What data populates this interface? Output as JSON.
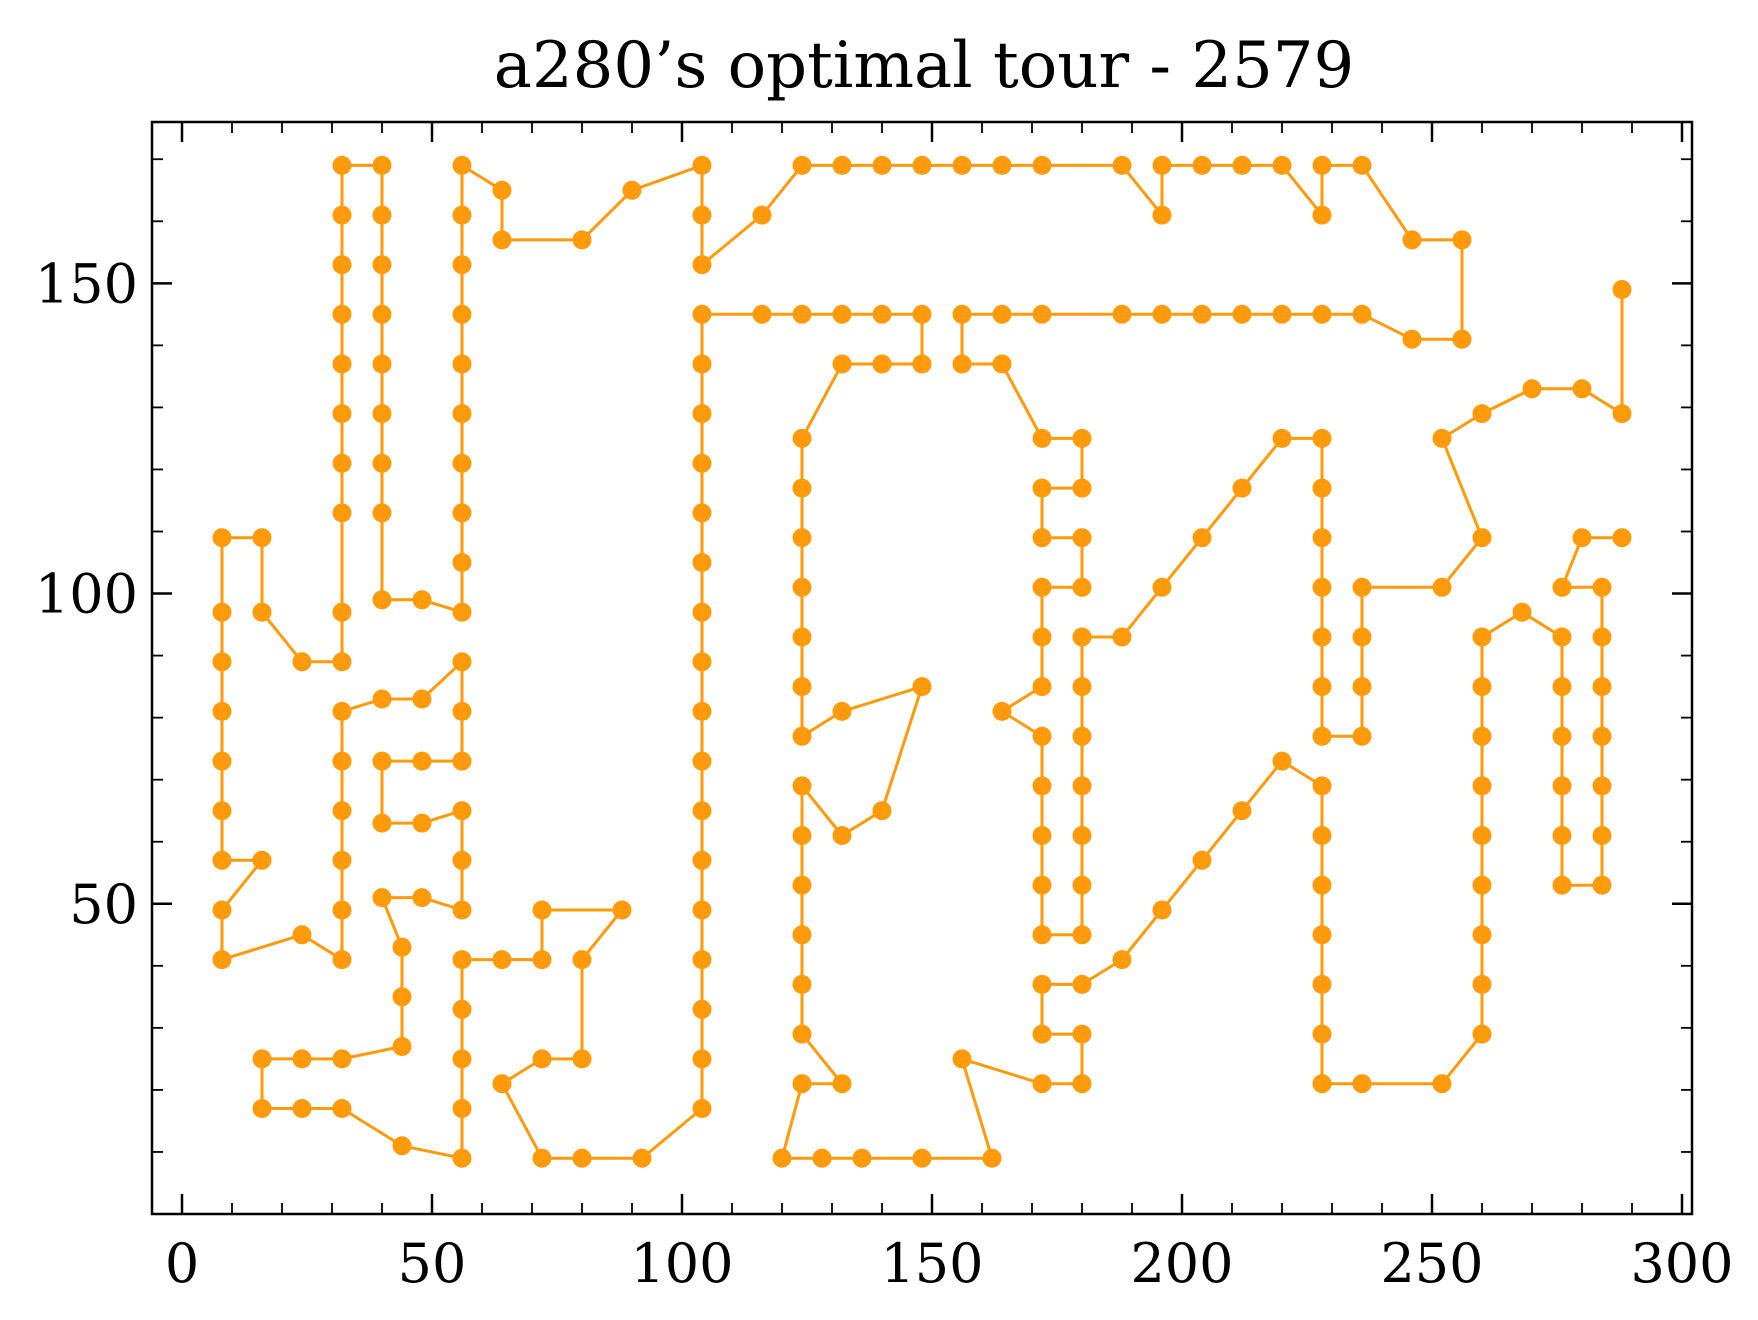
{
  "chart_data": {
    "type": "line",
    "title": "a280’s optimal tour - 2579",
    "xlabel": "",
    "ylabel": "",
    "xlim": [
      -6,
      302
    ],
    "ylim": [
      0,
      176
    ],
    "x_ticks": [
      0,
      50,
      100,
      150,
      200,
      250,
      300
    ],
    "y_ticks": [
      50,
      100,
      150
    ],
    "x_minor_step": 10,
    "y_minor_step": 10,
    "grid": false,
    "legend": "none",
    "colors": {
      "series": "#ff9a0a",
      "axes": "#000000"
    },
    "series": [
      {
        "marker": "circle",
        "points": [
          [
            288,
            149
          ],
          [
            288,
            129
          ],
          [
            280,
            133
          ],
          [
            270,
            133
          ],
          [
            260,
            129
          ],
          [
            252,
            125
          ],
          [
            260,
            109
          ],
          [
            252,
            101
          ],
          [
            236,
            101
          ],
          [
            236,
            93
          ],
          [
            236,
            85
          ],
          [
            236,
            77
          ],
          [
            228,
            77
          ],
          [
            228,
            85
          ],
          [
            228,
            93
          ],
          [
            228,
            101
          ],
          [
            228,
            109
          ],
          [
            228,
            117
          ],
          [
            228,
            125
          ],
          [
            220,
            125
          ],
          [
            212,
            117
          ],
          [
            204,
            109
          ],
          [
            196,
            101
          ],
          [
            188,
            93
          ],
          [
            180,
            93
          ],
          [
            180,
            85
          ],
          [
            180,
            77
          ],
          [
            180,
            69
          ],
          [
            180,
            61
          ],
          [
            180,
            53
          ],
          [
            180,
            45
          ],
          [
            172,
            45
          ],
          [
            172,
            53
          ],
          [
            172,
            61
          ],
          [
            172,
            69
          ],
          [
            172,
            77
          ],
          [
            164,
            81
          ],
          [
            172,
            85
          ],
          [
            172,
            93
          ],
          [
            172,
            101
          ],
          [
            180,
            101
          ],
          [
            180,
            109
          ],
          [
            172,
            109
          ],
          [
            172,
            117
          ],
          [
            180,
            117
          ],
          [
            180,
            125
          ],
          [
            172,
            125
          ],
          [
            164,
            137
          ],
          [
            156,
            137
          ],
          [
            156,
            145
          ],
          [
            164,
            145
          ],
          [
            172,
            145
          ],
          [
            188,
            145
          ],
          [
            196,
            145
          ],
          [
            204,
            145
          ],
          [
            212,
            145
          ],
          [
            220,
            145
          ],
          [
            228,
            145
          ],
          [
            236,
            145
          ],
          [
            246,
            141
          ],
          [
            256,
            141
          ],
          [
            256,
            157
          ],
          [
            246,
            157
          ],
          [
            236,
            169
          ],
          [
            228,
            169
          ],
          [
            228,
            161
          ],
          [
            220,
            169
          ],
          [
            212,
            169
          ],
          [
            204,
            169
          ],
          [
            196,
            169
          ],
          [
            196,
            161
          ],
          [
            188,
            169
          ],
          [
            172,
            169
          ],
          [
            164,
            169
          ],
          [
            156,
            169
          ],
          [
            148,
            169
          ],
          [
            140,
            169
          ],
          [
            132,
            169
          ],
          [
            124,
            169
          ],
          [
            116,
            161
          ],
          [
            104,
            153
          ],
          [
            104,
            161
          ],
          [
            104,
            169
          ],
          [
            90,
            165
          ],
          [
            80,
            157
          ],
          [
            64,
            157
          ],
          [
            64,
            165
          ],
          [
            56,
            169
          ],
          [
            56,
            161
          ],
          [
            56,
            153
          ],
          [
            56,
            145
          ],
          [
            56,
            137
          ],
          [
            56,
            129
          ],
          [
            56,
            121
          ],
          [
            56,
            113
          ],
          [
            56,
            105
          ],
          [
            56,
            97
          ],
          [
            48,
            99
          ],
          [
            40,
            99
          ],
          [
            40,
            113
          ],
          [
            40,
            121
          ],
          [
            40,
            129
          ],
          [
            40,
            137
          ],
          [
            40,
            145
          ],
          [
            40,
            153
          ],
          [
            40,
            161
          ],
          [
            40,
            169
          ],
          [
            32,
            169
          ],
          [
            32,
            161
          ],
          [
            32,
            153
          ],
          [
            32,
            145
          ],
          [
            32,
            137
          ],
          [
            32,
            129
          ],
          [
            32,
            121
          ],
          [
            32,
            113
          ],
          [
            32,
            97
          ],
          [
            32,
            89
          ],
          [
            24,
            89
          ],
          [
            16,
            97
          ],
          [
            16,
            109
          ],
          [
            8,
            109
          ],
          [
            8,
            97
          ],
          [
            8,
            89
          ],
          [
            8,
            81
          ],
          [
            8,
            73
          ],
          [
            8,
            65
          ],
          [
            8,
            57
          ],
          [
            16,
            57
          ],
          [
            8,
            49
          ],
          [
            8,
            41
          ],
          [
            24,
            45
          ],
          [
            32,
            41
          ],
          [
            32,
            49
          ],
          [
            32,
            57
          ],
          [
            32,
            65
          ],
          [
            32,
            73
          ],
          [
            32,
            81
          ],
          [
            40,
            83
          ],
          [
            48,
            83
          ],
          [
            56,
            89
          ],
          [
            56,
            81
          ],
          [
            56,
            73
          ],
          [
            48,
            73
          ],
          [
            40,
            73
          ],
          [
            40,
            63
          ],
          [
            48,
            63
          ],
          [
            56,
            65
          ],
          [
            56,
            57
          ],
          [
            56,
            49
          ],
          [
            48,
            51
          ],
          [
            40,
            51
          ],
          [
            44,
            43
          ],
          [
            44,
            35
          ],
          [
            44,
            27
          ],
          [
            32,
            25
          ],
          [
            24,
            25
          ],
          [
            16,
            25
          ],
          [
            16,
            17
          ],
          [
            24,
            17
          ],
          [
            32,
            17
          ],
          [
            44,
            11
          ],
          [
            56,
            9
          ],
          [
            56,
            17
          ],
          [
            56,
            25
          ],
          [
            56,
            33
          ],
          [
            56,
            41
          ],
          [
            64,
            41
          ],
          [
            72,
            41
          ],
          [
            72,
            49
          ],
          [
            88,
            49
          ],
          [
            80,
            41
          ],
          [
            80,
            25
          ],
          [
            72,
            25
          ],
          [
            64,
            21
          ],
          [
            72,
            9
          ],
          [
            80,
            9
          ],
          [
            92,
            9
          ],
          [
            104,
            17
          ],
          [
            104,
            25
          ],
          [
            104,
            33
          ],
          [
            104,
            41
          ],
          [
            104,
            49
          ],
          [
            104,
            57
          ],
          [
            104,
            65
          ],
          [
            104,
            73
          ],
          [
            104,
            81
          ],
          [
            104,
            89
          ],
          [
            104,
            97
          ],
          [
            104,
            105
          ],
          [
            104,
            113
          ],
          [
            104,
            121
          ],
          [
            104,
            129
          ],
          [
            104,
            137
          ],
          [
            104,
            145
          ],
          [
            116,
            145
          ],
          [
            124,
            145
          ],
          [
            132,
            145
          ],
          [
            140,
            145
          ],
          [
            148,
            145
          ],
          [
            148,
            137
          ],
          [
            140,
            137
          ],
          [
            132,
            137
          ],
          [
            124,
            125
          ],
          [
            124,
            117
          ],
          [
            124,
            109
          ],
          [
            124,
            101
          ],
          [
            124,
            93
          ],
          [
            124,
            85
          ],
          [
            124,
            77
          ],
          [
            132,
            81
          ],
          [
            148,
            85
          ],
          [
            140,
            65
          ],
          [
            132,
            61
          ],
          [
            124,
            69
          ],
          [
            124,
            61
          ],
          [
            124,
            53
          ],
          [
            124,
            45
          ],
          [
            124,
            37
          ],
          [
            124,
            29
          ],
          [
            132,
            21
          ],
          [
            124,
            21
          ],
          [
            120,
            9
          ],
          [
            128,
            9
          ],
          [
            136,
            9
          ],
          [
            148,
            9
          ],
          [
            162,
            9
          ],
          [
            156,
            25
          ],
          [
            172,
            21
          ],
          [
            180,
            21
          ],
          [
            180,
            29
          ],
          [
            172,
            29
          ],
          [
            172,
            37
          ],
          [
            180,
            37
          ],
          [
            188,
            41
          ],
          [
            196,
            49
          ],
          [
            204,
            57
          ],
          [
            212,
            65
          ],
          [
            220,
            73
          ],
          [
            228,
            69
          ],
          [
            228,
            61
          ],
          [
            228,
            53
          ],
          [
            228,
            45
          ],
          [
            228,
            37
          ],
          [
            228,
            29
          ],
          [
            228,
            21
          ],
          [
            236,
            21
          ],
          [
            252,
            21
          ],
          [
            260,
            29
          ],
          [
            260,
            37
          ],
          [
            260,
            45
          ],
          [
            260,
            53
          ],
          [
            260,
            61
          ],
          [
            260,
            69
          ],
          [
            260,
            77
          ],
          [
            260,
            85
          ],
          [
            260,
            93
          ],
          [
            268,
            97
          ],
          [
            276,
            93
          ],
          [
            276,
            85
          ],
          [
            276,
            77
          ],
          [
            276,
            69
          ],
          [
            276,
            61
          ],
          [
            276,
            53
          ],
          [
            284,
            53
          ],
          [
            284,
            61
          ],
          [
            284,
            69
          ],
          [
            284,
            77
          ],
          [
            284,
            85
          ],
          [
            284,
            93
          ],
          [
            284,
            101
          ],
          [
            276,
            101
          ],
          [
            280,
            109
          ],
          [
            288,
            109
          ]
        ]
      }
    ]
  }
}
